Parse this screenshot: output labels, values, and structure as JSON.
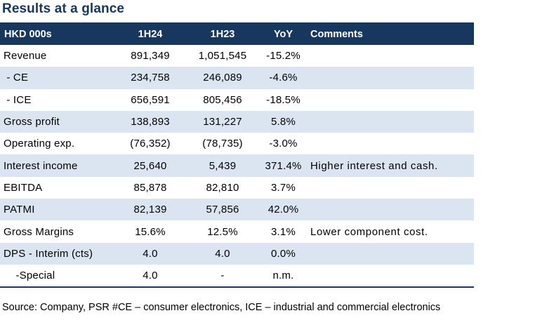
{
  "title": "Results at a glance",
  "table": {
    "headers": [
      "HKD 000s",
      "1H24",
      "1H23",
      "YoY",
      "Comments"
    ],
    "rows": [
      {
        "label": "Revenue",
        "h24": "891,349",
        "h23": "1,051,545",
        "yoy": "-15.2%",
        "comment": ""
      },
      {
        "label": " - CE",
        "h24": "234,758",
        "h23": "246,089",
        "yoy": "-4.6%",
        "comment": ""
      },
      {
        "label": " - ICE",
        "h24": "656,591",
        "h23": "805,456",
        "yoy": "-18.5%",
        "comment": ""
      },
      {
        "label": "Gross profit",
        "h24": "138,893",
        "h23": "131,227",
        "yoy": "5.8%",
        "comment": ""
      },
      {
        "label": "Operating exp.",
        "h24": "(76,352)",
        "h23": "(78,735)",
        "yoy": "-3.0%",
        "comment": ""
      },
      {
        "label": "Interest income",
        "h24": "25,640",
        "h23": "5,439",
        "yoy": "371.4%",
        "comment": "Higher interest and cash."
      },
      {
        "label": "EBITDA",
        "h24": "85,878",
        "h23": "82,810",
        "yoy": "3.7%",
        "comment": ""
      },
      {
        "label": "PATMI",
        "h24": "82,139",
        "h23": "57,856",
        "yoy": "42.0%",
        "comment": ""
      },
      {
        "label": "Gross Margins",
        "h24": "15.6%",
        "h23": "12.5%",
        "yoy": "3.1%",
        "comment": "Lower component cost."
      },
      {
        "label": "DPS - Interim (cts)",
        "h24": "4.0",
        "h23": "4.0",
        "yoy": "0.0%",
        "comment": ""
      },
      {
        "label": "    -Special",
        "h24": "4.0",
        "h23": "-",
        "yoy": "n.m.",
        "comment": ""
      }
    ]
  },
  "source": "Source: Company, PSR #CE – consumer electronics, ICE – industrial and commercial electronics",
  "colors": {
    "header_bg": "#17375e",
    "shaded_row": "#dbe5f1",
    "title": "#17375e"
  }
}
